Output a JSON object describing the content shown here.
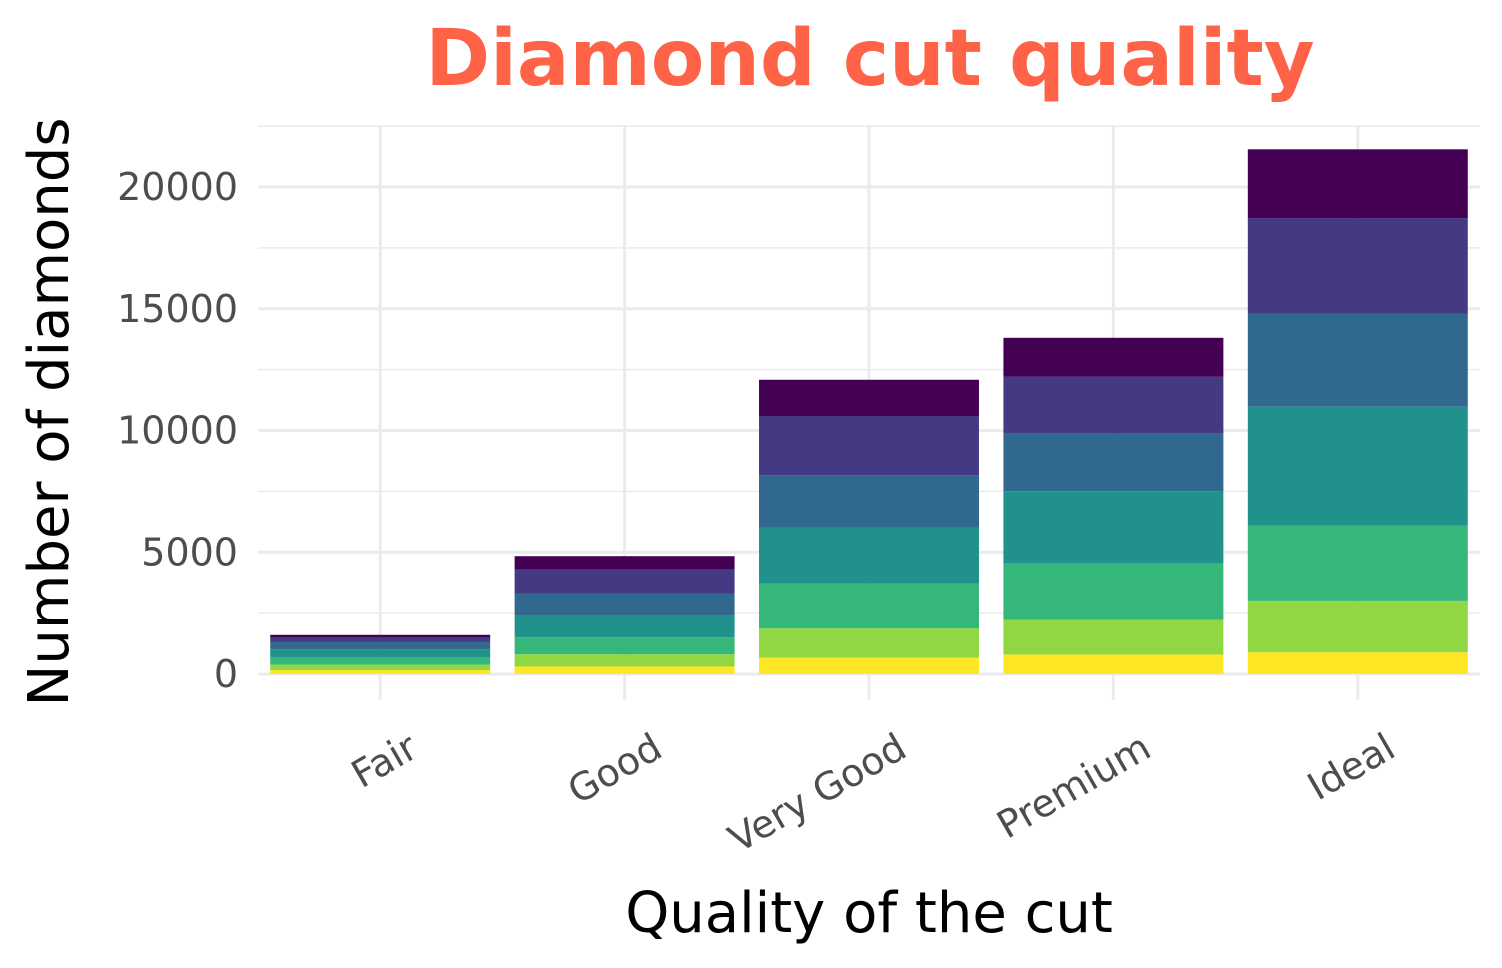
{
  "chart_data": {
    "type": "bar",
    "stacked": true,
    "title": "Diamond cut quality",
    "title_color": "#ff6347",
    "xlabel": "Quality of the cut",
    "ylabel": "Number of diamonds",
    "categories": [
      "Fair",
      "Good",
      "Very Good",
      "Premium",
      "Ideal"
    ],
    "ylim": [
      0,
      22500
    ],
    "yticks": [
      0,
      5000,
      10000,
      15000,
      20000
    ],
    "grid": true,
    "legend": "none",
    "series": [
      {
        "values": [
          163,
          309,
          678,
          803,
          896
        ],
        "color": "#fde725"
      },
      {
        "values": [
          224,
          503,
          1202,
          1426,
          2106
        ],
        "color": "#90d743"
      },
      {
        "values": [
          312,
          703,
          1824,
          2329,
          3091
        ],
        "color": "#35b779"
      },
      {
        "values": [
          314,
          909,
          2297,
          2950,
          4884
        ],
        "color": "#21918c"
      },
      {
        "values": [
          303,
          880,
          2169,
          2358,
          3829
        ],
        "color": "#31688e"
      },
      {
        "values": [
          175,
          979,
          2426,
          2338,
          3908
        ],
        "color": "#443983"
      },
      {
        "values": [
          119,
          555,
          1487,
          1603,
          2834
        ],
        "color": "#440154"
      }
    ]
  }
}
